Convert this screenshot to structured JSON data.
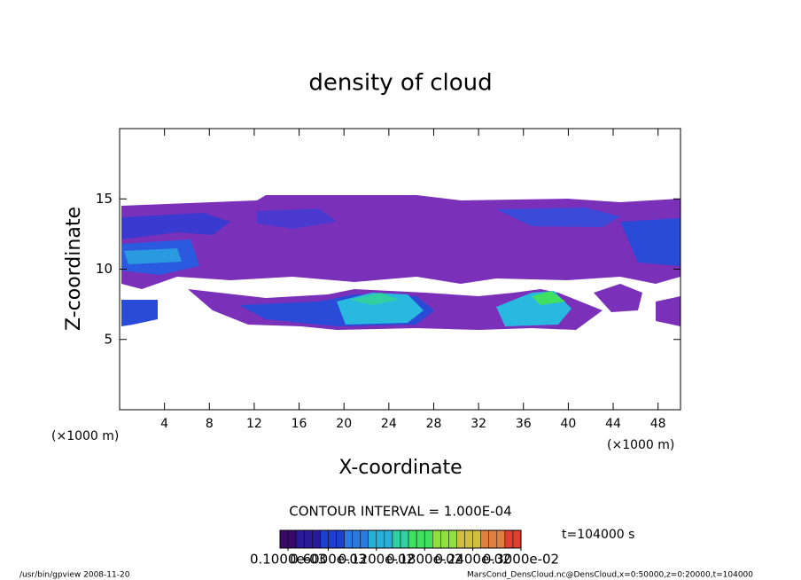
{
  "chart_data": {
    "type": "contour",
    "title": "density of cloud",
    "x_label": "X-coordinate",
    "y_label": "Z-coordinate",
    "x_unit_left": "(×1000 m)",
    "x_unit_right": "(×1000 m)",
    "xlim": [
      0,
      50
    ],
    "xticks": [
      4,
      8,
      12,
      16,
      20,
      24,
      28,
      32,
      36,
      40,
      44,
      48
    ],
    "ylim": [
      0,
      20
    ],
    "yticks": [
      5,
      10,
      15
    ],
    "contour_interval": "CONTOUR INTERVAL = 1.000E-04",
    "time_label": "t=104000 s",
    "colorbar_lim": [
      0,
      0.003
    ],
    "colorbar_ticks": [
      {
        "value": 0.0001,
        "label": "0.1000e-03"
      },
      {
        "value": 0.0006,
        "label": "0.6000e-03"
      },
      {
        "value": 0.0012,
        "label": "0.1200e-02"
      },
      {
        "value": 0.0018,
        "label": "0.1800e-02"
      },
      {
        "value": 0.0024,
        "label": "0.2400e-02"
      },
      {
        "value": 0.003,
        "label": "0.3000e-02"
      }
    ],
    "colorbar_colors": [
      "#3a0a6a",
      "#2a1a9a",
      "#1f3fd0",
      "#2a7ae0",
      "#28b0d8",
      "#30d0a0",
      "#40e060",
      "#90e040",
      "#d0c040",
      "#e08040",
      "#e04030"
    ],
    "footer_left": "/usr/bin/gpview  2008-11-20",
    "footer_right": "MarsCond_DensCloud.nc@DensCloud,x=0:50000,z=0:20000,t=104000"
  }
}
